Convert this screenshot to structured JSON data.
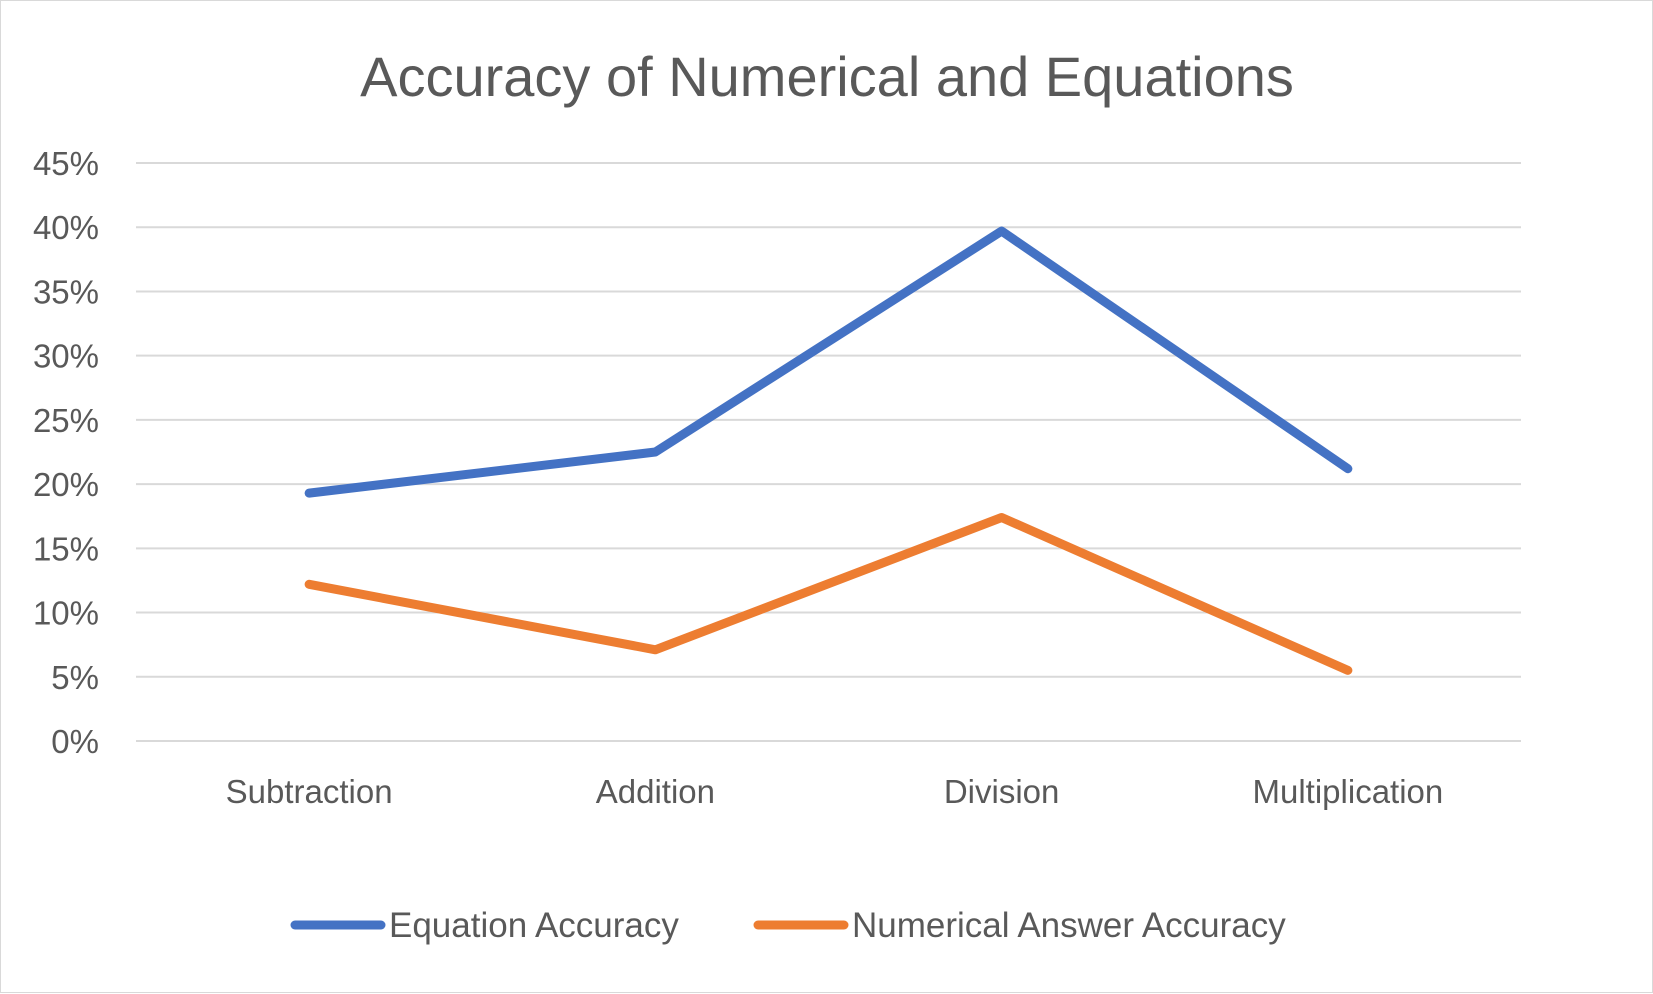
{
  "chart_data": {
    "type": "line",
    "title": "Accuracy of Numerical and Equations",
    "xlabel": "",
    "ylabel": "",
    "categories": [
      "Subtraction",
      "Addition",
      "Division",
      "Multiplication"
    ],
    "y_tick_labels": [
      "0%",
      "5%",
      "10%",
      "15%",
      "20%",
      "25%",
      "30%",
      "35%",
      "40%",
      "45%"
    ],
    "ylim": [
      0,
      0.45
    ],
    "y_tick_step": 0.05,
    "y_format": "percent",
    "grid": true,
    "legend_position": "bottom",
    "series": [
      {
        "name": "Equation Accuracy",
        "color": "#4472C4",
        "values": [
          0.193,
          0.225,
          0.397,
          0.212
        ]
      },
      {
        "name": "Numerical Answer Accuracy",
        "color": "#ED7D31",
        "values": [
          0.122,
          0.071,
          0.174,
          0.055
        ]
      }
    ]
  }
}
